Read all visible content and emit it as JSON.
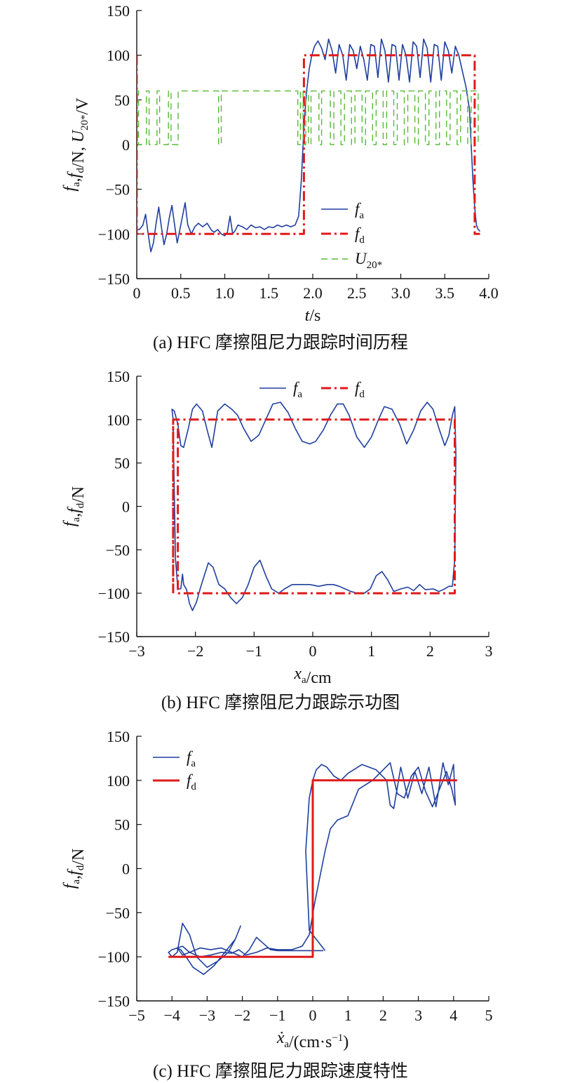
{
  "colors": {
    "fa": "#1f3f9e",
    "fd": "#e01a1a",
    "u": "#55bb33",
    "axis": "#111111"
  },
  "captions": {
    "a": "(a) HFC 摩擦阻尼力跟踪时间历程",
    "b": "(b) HFC 摩擦阻尼力跟踪示功图",
    "c": "(c) HFC 摩擦阻尼力跟踪速度特性"
  },
  "chart_data": [
    {
      "type": "line",
      "id": "a",
      "title": "",
      "xlabel": "t/s",
      "ylabel": "fa,fd/N, U20*/V",
      "xlim": [
        0,
        4.0
      ],
      "ylim": [
        -150,
        150
      ],
      "xticks": [
        0,
        0.5,
        1.0,
        1.5,
        2.0,
        2.5,
        3.0,
        3.5,
        4.0
      ],
      "xtick_labels": [
        "0",
        "0.5",
        "1.0",
        "1.5",
        "2.0",
        "2.5",
        "3.0",
        "3.5",
        "4.0"
      ],
      "yticks": [
        -150,
        -100,
        -50,
        0,
        50,
        100,
        150
      ],
      "ytick_labels": [
        "−150",
        "−100",
        "−50",
        "0",
        "50",
        "100",
        "150"
      ],
      "legend_position": "center-right",
      "series": [
        {
          "name": "fa",
          "style": "solid",
          "x": [
            0,
            0.03,
            0.07,
            0.1,
            0.13,
            0.16,
            0.19,
            0.22,
            0.25,
            0.28,
            0.31,
            0.34,
            0.37,
            0.4,
            0.43,
            0.46,
            0.49,
            0.52,
            0.55,
            0.58,
            0.62,
            0.66,
            0.7,
            0.75,
            0.8,
            0.85,
            0.88,
            0.92,
            0.96,
            1.0,
            1.03,
            1.06,
            1.09,
            1.12,
            1.15,
            1.2,
            1.25,
            1.3,
            1.35,
            1.4,
            1.45,
            1.5,
            1.55,
            1.6,
            1.65,
            1.7,
            1.75,
            1.8,
            1.84,
            1.87,
            1.9,
            1.93,
            1.96,
            1.99,
            2.02,
            2.06,
            2.1,
            2.14,
            2.18,
            2.22,
            2.26,
            2.3,
            2.34,
            2.38,
            2.42,
            2.46,
            2.5,
            2.54,
            2.58,
            2.62,
            2.66,
            2.7,
            2.74,
            2.78,
            2.82,
            2.86,
            2.9,
            2.94,
            2.98,
            3.02,
            3.06,
            3.1,
            3.14,
            3.18,
            3.22,
            3.26,
            3.3,
            3.34,
            3.38,
            3.42,
            3.46,
            3.5,
            3.54,
            3.58,
            3.62,
            3.66,
            3.7,
            3.74,
            3.78,
            3.8,
            3.82,
            3.84,
            3.86,
            3.88,
            3.9
          ],
          "y": [
            -95,
            -95,
            -90,
            -78,
            -100,
            -120,
            -110,
            -88,
            -70,
            -92,
            -112,
            -100,
            -82,
            -68,
            -90,
            -110,
            -95,
            -80,
            -65,
            -90,
            -100,
            -92,
            -88,
            -92,
            -88,
            -96,
            -98,
            -95,
            -100,
            -102,
            -98,
            -80,
            -100,
            -96,
            -90,
            -92,
            -95,
            -90,
            -93,
            -92,
            -95,
            -92,
            -93,
            -90,
            -92,
            -90,
            -92,
            -90,
            -80,
            -40,
            20,
            60,
            85,
            100,
            110,
            116,
            108,
            95,
            118,
            105,
            80,
            112,
            100,
            72,
            112,
            105,
            85,
            110,
            95,
            72,
            112,
            110,
            75,
            118,
            105,
            70,
            112,
            110,
            72,
            112,
            100,
            70,
            115,
            110,
            75,
            118,
            108,
            70,
            112,
            110,
            72,
            115,
            105,
            80,
            110,
            100,
            82,
            65,
            40,
            0,
            -40,
            -70,
            -90,
            -95,
            -97
          ]
        },
        {
          "name": "fd",
          "style": "dashdot",
          "x": [
            0,
            0,
            1.9,
            1.9,
            3.84,
            3.84,
            3.9
          ],
          "y": [
            100,
            -100,
            -100,
            100,
            100,
            -100,
            -100
          ]
        },
        {
          "name": "U20*",
          "style": "dashed",
          "x": [
            0,
            0.02,
            0.02,
            0.11,
            0.11,
            0.14,
            0.14,
            0.23,
            0.23,
            0.26,
            0.26,
            0.36,
            0.36,
            0.39,
            0.39,
            0.47,
            0.47,
            0.93,
            0.93,
            0.96,
            0.96,
            1.83,
            1.83,
            1.86,
            1.86,
            1.89,
            1.89,
            1.92,
            1.92,
            1.95,
            1.95,
            1.98,
            1.98,
            2.07,
            2.07,
            2.1,
            2.1,
            2.2,
            2.2,
            2.24,
            2.24,
            2.32,
            2.32,
            2.36,
            2.36,
            2.44,
            2.44,
            2.48,
            2.48,
            2.56,
            2.56,
            2.6,
            2.6,
            2.68,
            2.68,
            2.72,
            2.72,
            2.8,
            2.8,
            2.84,
            2.84,
            2.92,
            2.92,
            2.96,
            2.96,
            3.04,
            3.04,
            3.08,
            3.08,
            3.16,
            3.16,
            3.2,
            3.2,
            3.28,
            3.28,
            3.32,
            3.32,
            3.4,
            3.4,
            3.44,
            3.44,
            3.52,
            3.52,
            3.56,
            3.56,
            3.64,
            3.64,
            3.68,
            3.68,
            3.76,
            3.76,
            3.8,
            3.8,
            3.88,
            3.88,
            3.9
          ],
          "y": [
            60,
            60,
            0,
            0,
            60,
            60,
            0,
            0,
            60,
            60,
            0,
            0,
            60,
            60,
            0,
            0,
            60,
            60,
            0,
            0,
            60,
            60,
            0,
            0,
            60,
            60,
            0,
            0,
            60,
            60,
            0,
            0,
            60,
            60,
            0,
            0,
            60,
            60,
            0,
            0,
            60,
            60,
            0,
            0,
            60,
            60,
            0,
            0,
            60,
            60,
            0,
            0,
            60,
            60,
            0,
            0,
            60,
            60,
            0,
            0,
            60,
            60,
            0,
            0,
            60,
            60,
            0,
            0,
            60,
            60,
            0,
            0,
            60,
            60,
            0,
            0,
            60,
            60,
            0,
            0,
            60,
            60,
            0,
            0,
            60,
            60,
            0,
            0,
            60,
            60,
            0,
            0,
            60,
            60,
            0,
            0
          ]
        }
      ]
    },
    {
      "type": "line",
      "id": "b",
      "title": "",
      "xlabel": "xa/cm",
      "ylabel": "fa,fd/N",
      "xlim": [
        -3,
        3
      ],
      "ylim": [
        -150,
        150
      ],
      "xticks": [
        -3,
        -2,
        -1,
        0,
        1,
        2,
        3
      ],
      "xtick_labels": [
        "−3",
        "−2",
        "−1",
        "0",
        "1",
        "2",
        "3"
      ],
      "yticks": [
        -150,
        -100,
        -50,
        0,
        50,
        100,
        150
      ],
      "ytick_labels": [
        "−150",
        "−100",
        "−50",
        "0",
        "50",
        "100",
        "150"
      ],
      "legend_position": "top-center",
      "series": [
        {
          "name": "fa",
          "style": "solid",
          "x": [
            -2.38,
            -2.4,
            -2.36,
            -2.3,
            -2.25,
            -2.2,
            -2.12,
            -2.05,
            -1.98,
            -1.88,
            -1.8,
            -1.72,
            -1.62,
            -1.5,
            -1.38,
            -1.28,
            -1.18,
            -1.05,
            -0.92,
            -0.8,
            -0.68,
            -0.55,
            -0.42,
            -0.3,
            -0.18,
            -0.05,
            0.05,
            0.18,
            0.3,
            0.42,
            0.52,
            0.62,
            0.75,
            0.88,
            1.0,
            1.12,
            1.22,
            1.35,
            1.48,
            1.6,
            1.72,
            1.84,
            1.95,
            2.05,
            2.15,
            2.25,
            2.32,
            2.38,
            2.42,
            2.44,
            2.43,
            2.42,
            2.38,
            2.32,
            2.25,
            2.15,
            2.05,
            1.92,
            1.82,
            1.72,
            1.62,
            1.5,
            1.38,
            1.28,
            1.18,
            1.08,
            0.98,
            0.88,
            0.76,
            0.65,
            0.55,
            0.45,
            0.35,
            0.25,
            0.1,
            -0.05,
            -0.2,
            -0.35,
            -0.48,
            -0.58,
            -0.7,
            -0.8,
            -0.9,
            -1.0,
            -1.1,
            -1.2,
            -1.3,
            -1.4,
            -1.5,
            -1.6,
            -1.7,
            -1.78,
            -1.85,
            -1.92,
            -1.98,
            -2.05,
            -2.1,
            -2.15,
            -2.2,
            -2.22,
            -2.25,
            -2.3,
            -2.34,
            -2.36,
            -2.38
          ],
          "y": [
            100,
            112,
            110,
            95,
            70,
            68,
            90,
            112,
            118,
            110,
            88,
            68,
            110,
            118,
            112,
            105,
            90,
            75,
            82,
            100,
            118,
            120,
            108,
            90,
            75,
            72,
            75,
            88,
            105,
            118,
            118,
            105,
            80,
            68,
            80,
            100,
            115,
            112,
            95,
            72,
            88,
            110,
            120,
            112,
            90,
            70,
            82,
            105,
            115,
            60,
            0,
            -60,
            -92,
            -92,
            -95,
            -98,
            -95,
            -96,
            -90,
            -97,
            -93,
            -95,
            -98,
            -85,
            -75,
            -80,
            -95,
            -100,
            -100,
            -98,
            -95,
            -92,
            -90,
            -90,
            -92,
            -90,
            -90,
            -90,
            -95,
            -100,
            -95,
            -80,
            -62,
            -70,
            -90,
            -105,
            -112,
            -105,
            -95,
            -90,
            -70,
            -65,
            -80,
            -95,
            -110,
            -120,
            -112,
            -96,
            -90,
            -78,
            -95,
            -95,
            -60,
            20,
            90
          ]
        },
        {
          "name": "fd",
          "style": "dashdot",
          "x": [
            -2.38,
            -2.38,
            2.42,
            2.42,
            -2.3,
            -2.3,
            -2.38,
            -2.38
          ],
          "y": [
            -100,
            100,
            100,
            -100,
            -100,
            100,
            100,
            -100
          ]
        }
      ]
    },
    {
      "type": "line",
      "id": "c",
      "title": "",
      "xlabel": "ẋa/(cm·s−1)",
      "ylabel": "fa,fd/N",
      "xlim": [
        -5,
        5
      ],
      "ylim": [
        -150,
        150
      ],
      "xticks": [
        -5,
        -4,
        -3,
        -2,
        -1,
        0,
        1,
        2,
        3,
        4,
        5
      ],
      "xtick_labels": [
        "−5",
        "−4",
        "−3",
        "−2",
        "−1",
        "0",
        "1",
        "2",
        "3",
        "4",
        "5"
      ],
      "yticks": [
        -150,
        -100,
        -50,
        0,
        50,
        100,
        150
      ],
      "ytick_labels": [
        "−150",
        "−100",
        "−50",
        "0",
        "50",
        "100",
        "150"
      ],
      "legend_position": "top-left",
      "series": [
        {
          "name": "fa",
          "style": "solid",
          "x": [
            0.35,
            -0.1,
            -0.2,
            -0.1,
            0.0,
            0.1,
            0.25,
            0.4,
            0.6,
            0.8,
            1.0,
            1.4,
            1.8,
            2.1,
            2.2,
            2.3,
            2.5,
            2.7,
            2.9,
            3.1,
            3.3,
            3.5,
            3.7,
            3.85,
            4.0,
            4.05,
            3.95,
            3.8,
            3.6,
            3.4,
            3.2,
            3.0,
            2.8,
            2.6,
            2.4,
            2.2,
            2.0,
            1.7,
            1.3,
            1.0,
            0.7,
            0.5,
            0.35,
            0.2,
            0.05,
            -0.1,
            -0.3,
            -0.6,
            -1.0,
            -1.3,
            -1.6,
            -1.9,
            -2.1,
            -2.3,
            -2.6,
            -2.9,
            -3.2,
            -3.5,
            -3.7,
            -3.85,
            -4.0,
            -4.1,
            -4.0,
            -3.85,
            -3.7,
            -3.5,
            -3.3,
            -3.0,
            -2.7,
            -2.4,
            -2.2,
            -2.1,
            -2.05,
            -2.2,
            -2.5,
            -2.8,
            -3.1,
            -3.4,
            -3.6,
            -3.75,
            -3.85,
            -3.7,
            -3.5,
            -3.2,
            -2.9,
            -2.6,
            -2.3,
            -2.0,
            -1.8,
            -1.6,
            -1.4,
            -1.2,
            -1.0,
            -0.8,
            -0.6,
            -0.4,
            -0.2,
            -0.05,
            0.1,
            0.3
          ],
          "y": [
            -93,
            -70,
            20,
            80,
            100,
            112,
            118,
            115,
            105,
            100,
            108,
            118,
            112,
            100,
            72,
            68,
            115,
            80,
            110,
            85,
            115,
            70,
            120,
            95,
            118,
            72,
            90,
            110,
            90,
            70,
            88,
            115,
            105,
            80,
            85,
            120,
            112,
            100,
            90,
            60,
            55,
            45,
            20,
            -10,
            -40,
            -75,
            -88,
            -92,
            -92,
            -90,
            -95,
            -98,
            -92,
            -96,
            -95,
            -98,
            -100,
            -95,
            -98,
            -90,
            -92,
            -95,
            -100,
            -95,
            -62,
            -75,
            -100,
            -112,
            -105,
            -95,
            -80,
            -70,
            -65,
            -80,
            -95,
            -110,
            -120,
            -112,
            -100,
            -92,
            -90,
            -88,
            -95,
            -90,
            -92,
            -90,
            -95,
            -100,
            -92,
            -78,
            -85,
            -92,
            -93,
            -93,
            -93,
            -93,
            -93,
            -93,
            -93,
            -93
          ]
        },
        {
          "name": "fd",
          "style": "solid",
          "x": [
            -4.1,
            0,
            0,
            4.1
          ],
          "y": [
            -100,
            -100,
            100,
            100
          ]
        }
      ]
    }
  ]
}
